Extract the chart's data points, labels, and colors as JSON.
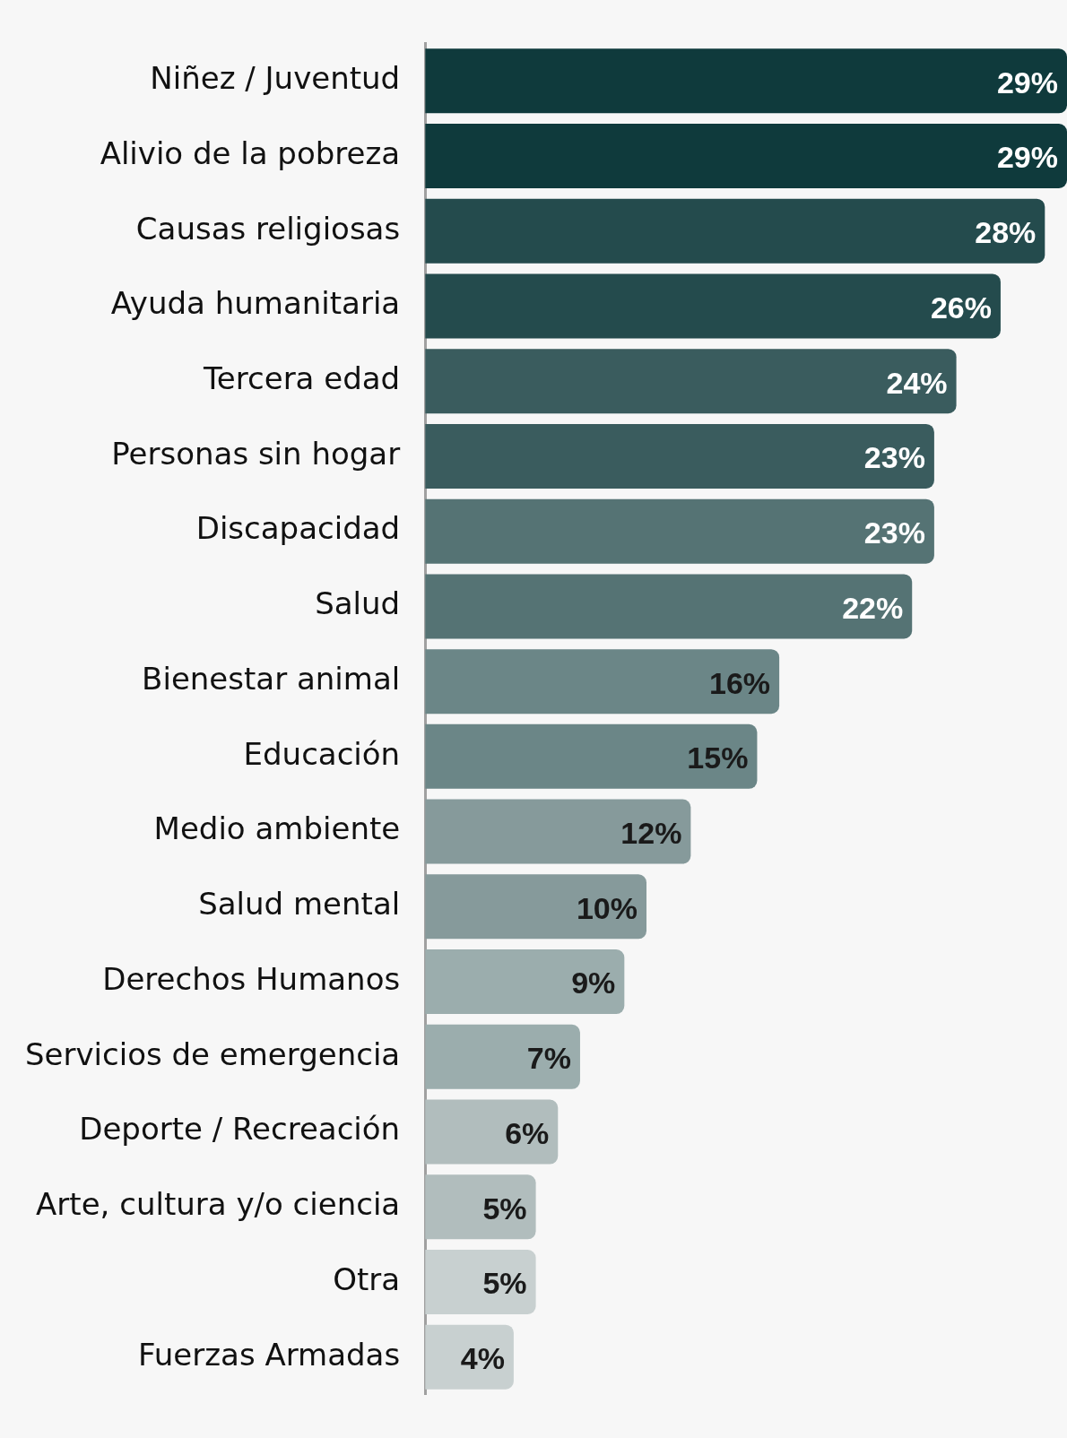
{
  "chart_data": {
    "type": "bar",
    "orientation": "horizontal",
    "categories": [
      "Niñez / Juventud",
      "Alivio de la pobreza",
      "Causas religiosas",
      "Ayuda humanitaria",
      "Tercera edad",
      "Personas sin hogar",
      "Discapacidad",
      "Salud",
      "Bienestar animal",
      "Educación",
      "Medio ambiente",
      "Salud mental",
      "Derechos Humanos",
      "Servicios de emergencia",
      "Deporte / Recreación",
      "Arte, cultura y/o ciencia",
      "Otra",
      "Fuerzas Armadas"
    ],
    "values": [
      29,
      29,
      28,
      26,
      24,
      23,
      23,
      22,
      16,
      15,
      12,
      10,
      9,
      7,
      6,
      5,
      5,
      4
    ],
    "value_labels": [
      "29%",
      "29%",
      "28%",
      "26%",
      "24%",
      "23%",
      "23%",
      "22%",
      "16%",
      "15%",
      "12%",
      "10%",
      "9%",
      "7%",
      "6%",
      "5%",
      "5%",
      "4%"
    ],
    "colors": [
      "#0f3a3c",
      "#0f3a3c",
      "#244b4d",
      "#244b4d",
      "#3a5c5e",
      "#3a5c5e",
      "#557374",
      "#557374",
      "#6b8687",
      "#6b8687",
      "#869a9b",
      "#869a9b",
      "#9badad",
      "#9badad",
      "#b1bdbd",
      "#b1bdbd",
      "#c8d0d0",
      "#c8d0d0"
    ],
    "grid": false,
    "legend": false
  }
}
